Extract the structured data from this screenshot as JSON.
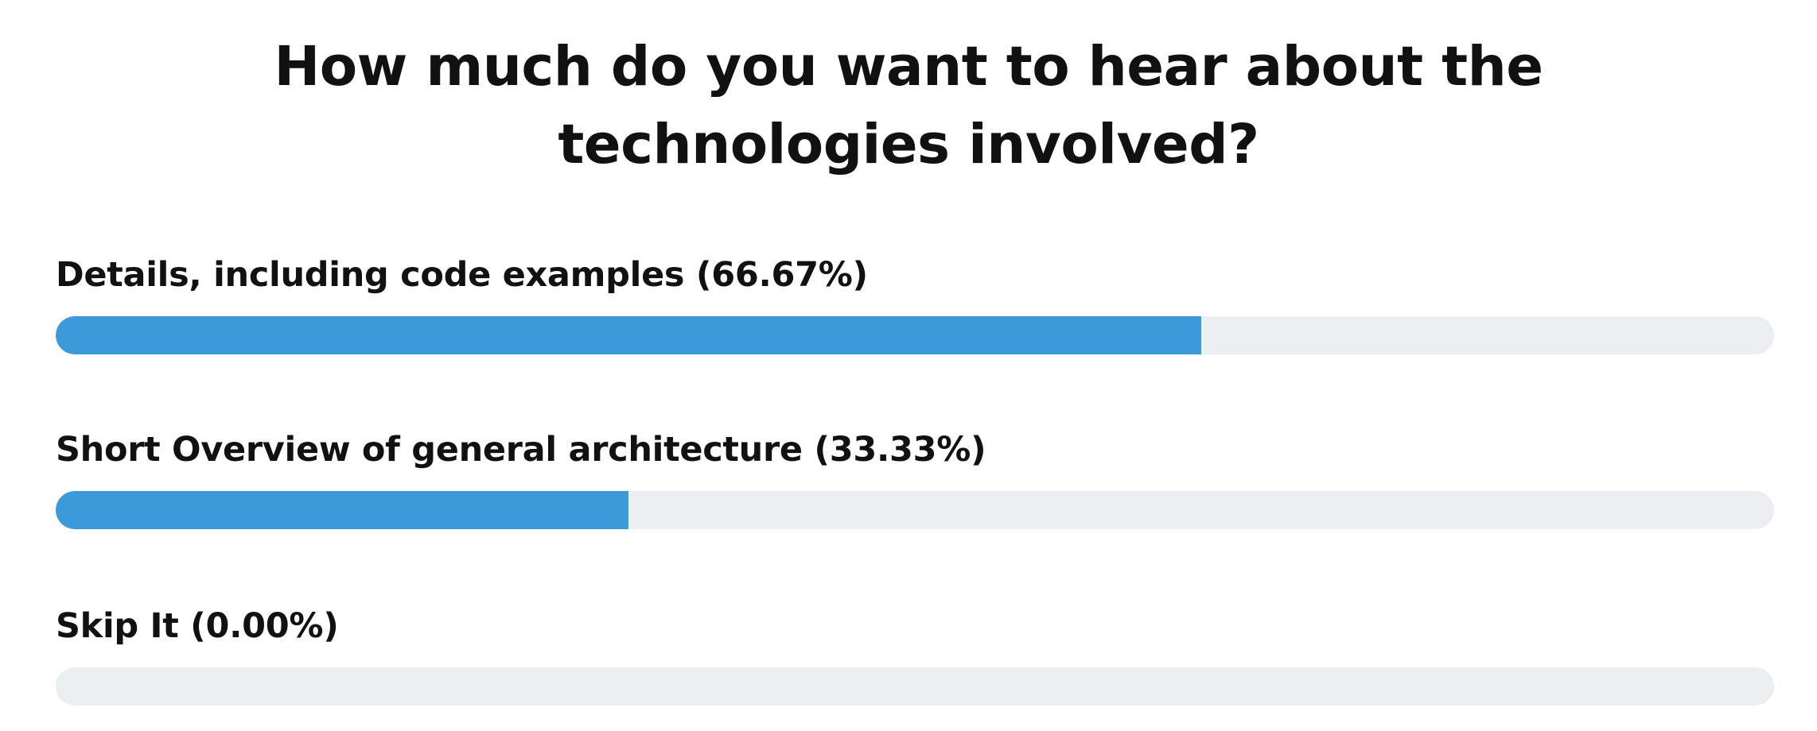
{
  "poll": {
    "question": "How much do you want to hear about the technologies involved?",
    "accent_color": "#3a9ada",
    "track_color": "#eceff0",
    "options": [
      {
        "label": "Details, including code examples (66.67%)",
        "percent": 66.67
      },
      {
        "label": "Short Overview of general architecture (33.33%)",
        "percent": 33.33
      },
      {
        "label": "Skip It (0.00%)",
        "percent": 0.0
      }
    ]
  }
}
